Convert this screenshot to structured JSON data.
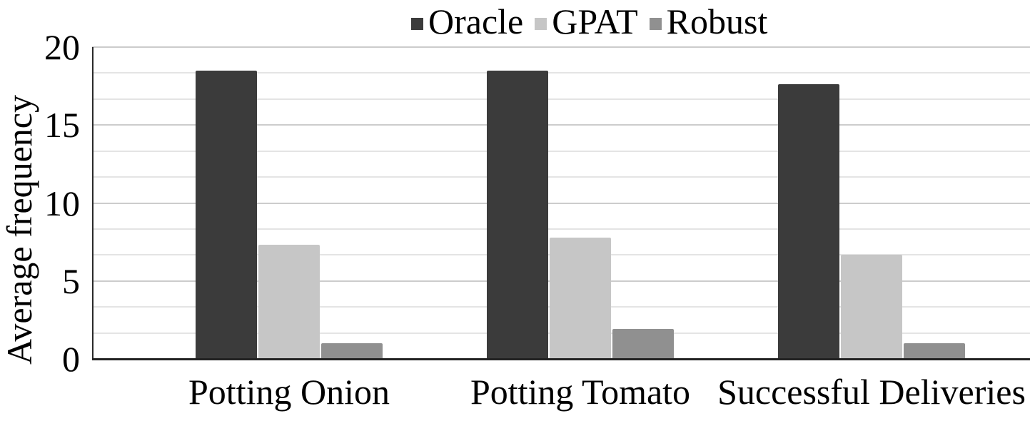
{
  "chart_data": {
    "type": "bar",
    "title": "",
    "categories": [
      "Potting Onion",
      "Potting Tomato",
      "Successful Deliveries"
    ],
    "series": [
      {
        "name": "Oracle",
        "color": "#3b3b3b",
        "values": [
          18.5,
          18.5,
          17.6
        ]
      },
      {
        "name": "GPAT",
        "color": "#c6c6c6",
        "values": [
          7.3,
          7.8,
          6.7
        ]
      },
      {
        "name": "Robust",
        "color": "#909090",
        "values": [
          1.0,
          1.9,
          1.0
        ]
      }
    ],
    "xlabel": "",
    "ylabel": "Average frequency",
    "ylim": [
      0,
      20
    ],
    "yticks": [
      0,
      5,
      10,
      15,
      20
    ],
    "gridlines": {
      "major_interval": 5,
      "minor_interval": 1.6667,
      "grid": true
    },
    "legend_position": "top"
  },
  "colors": {
    "background": "#ffffff",
    "text": "#000000",
    "axis_line": "#222222",
    "gridline_major": "#cccccc",
    "gridline_minor": "#e4e4e4"
  }
}
